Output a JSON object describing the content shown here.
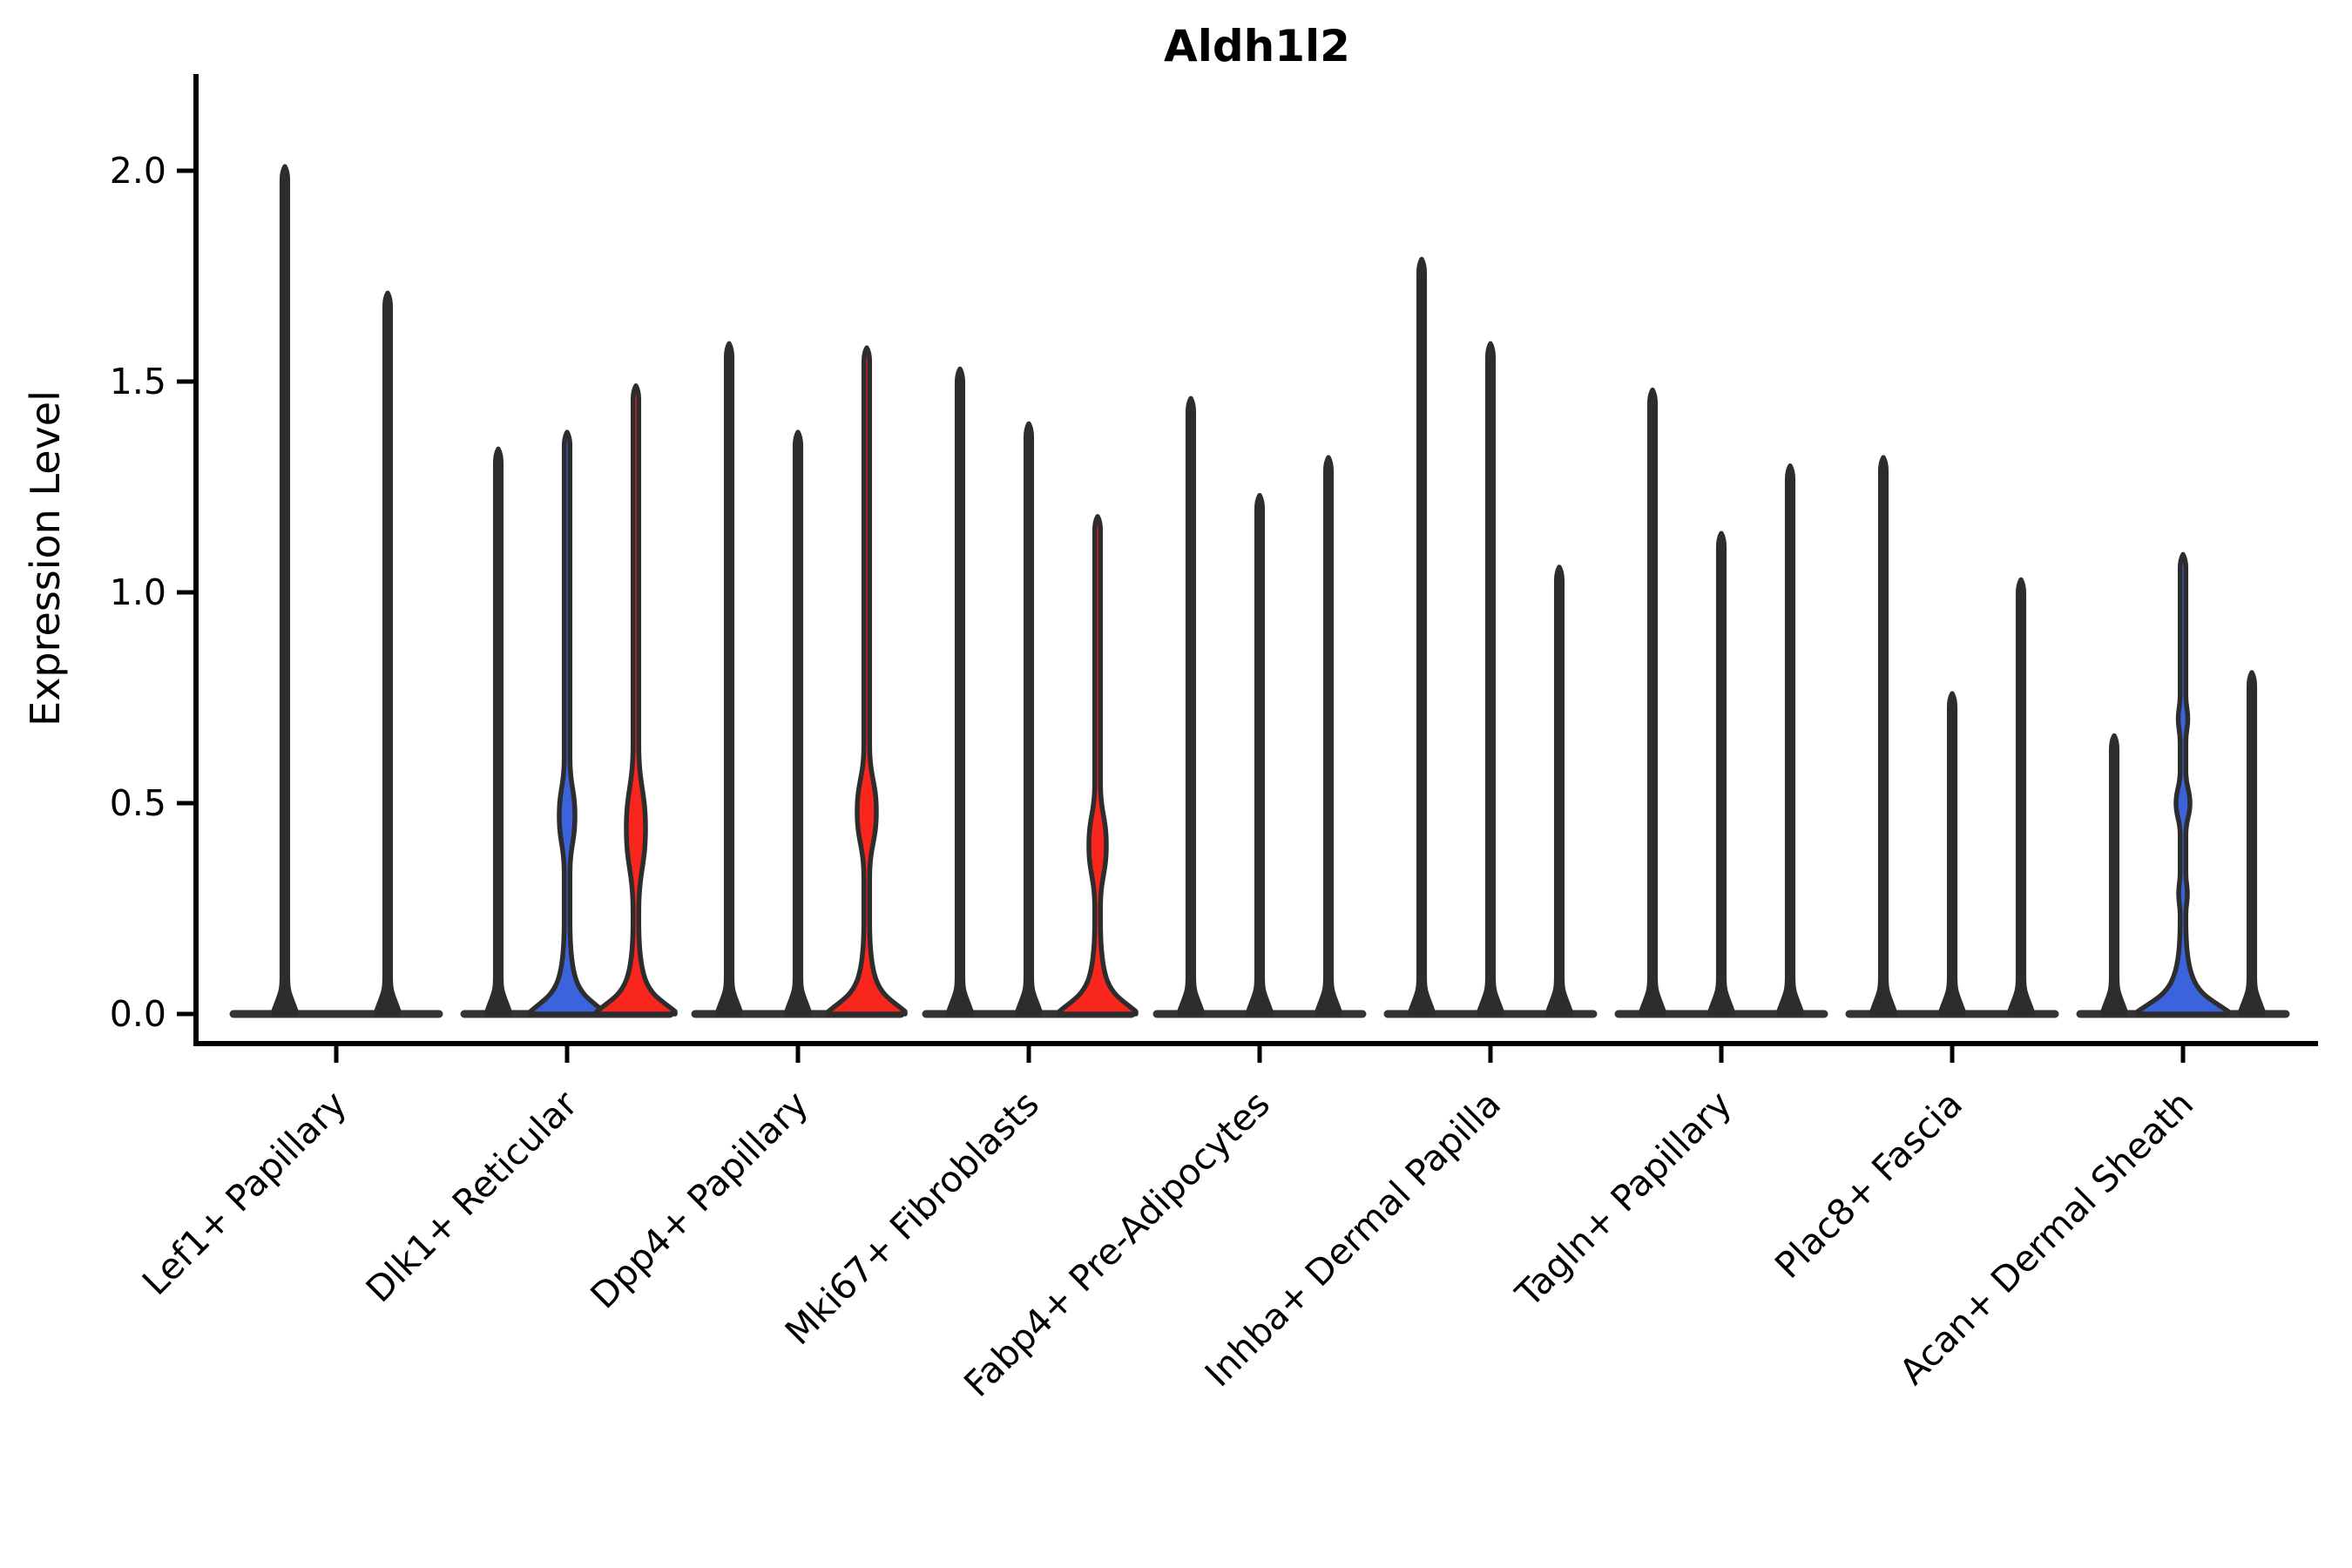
{
  "title": "Aldh1l2",
  "ylabel": "Expression Level",
  "chart_data": {
    "type": "violin",
    "title": "Aldh1l2",
    "xlabel": "",
    "ylabel": "Expression Level",
    "ylim": [
      -0.07,
      2.23
    ],
    "yticks": [
      0.0,
      0.5,
      1.0,
      1.5,
      2.0
    ],
    "ytick_labels": [
      "0.0",
      "0.5",
      "1.0",
      "1.5",
      "2.0"
    ],
    "grid": false,
    "legend": "none",
    "palette": {
      "blue": "#3B64DC",
      "red": "#F8261C",
      "outline": "#2d2d2d",
      "axis": "#000000"
    },
    "categories": [
      "Lef1+ Papillary",
      "Dlk1+ Reticular",
      "Dpp4+ Papillary",
      "Mki67+ Fibroblasts",
      "Fabp4+ Pre-Adipocytes",
      "Inhba+ Dermal Papilla",
      "Tagln+ Papillary",
      "Plac8+ Fascia",
      "Acan+ Dermal Sheath"
    ],
    "groups": [
      {
        "label": "Lef1+ Papillary",
        "violins": [
          {
            "peak": 2.01,
            "fill": null,
            "lenses": [],
            "base_hw": 13
          },
          {
            "peak": 1.71,
            "fill": null,
            "lenses": [],
            "base_hw": 13
          }
        ]
      },
      {
        "label": "Dlk1+ Reticular",
        "violins": [
          {
            "peak": 1.34,
            "fill": null,
            "lenses": [],
            "base_hw": 13
          },
          {
            "peak": 1.38,
            "fill": "blue",
            "lenses": [
              [
                0.47,
                0.14,
                9
              ]
            ],
            "base_hw": 42
          },
          {
            "peak": 1.49,
            "fill": "red",
            "lenses": [
              [
                0.44,
                0.2,
                11
              ]
            ],
            "base_hw": 45
          }
        ]
      },
      {
        "label": "Dpp4+ Papillary",
        "violins": [
          {
            "peak": 1.59,
            "fill": null,
            "lenses": [],
            "base_hw": 13
          },
          {
            "peak": 1.38,
            "fill": null,
            "lenses": [],
            "base_hw": 13
          },
          {
            "peak": 1.58,
            "fill": "red",
            "lenses": [
              [
                0.48,
                0.16,
                11
              ]
            ],
            "base_hw": 44
          }
        ]
      },
      {
        "label": "Mki67+ Fibroblasts",
        "violins": [
          {
            "peak": 1.53,
            "fill": null,
            "lenses": [],
            "base_hw": 13
          },
          {
            "peak": 1.4,
            "fill": null,
            "lenses": [],
            "base_hw": 13
          },
          {
            "peak": 1.18,
            "fill": "red",
            "lenses": [
              [
                0.4,
                0.15,
                10
              ]
            ],
            "base_hw": 44
          }
        ]
      },
      {
        "label": "Fabp4+ Pre-Adipocytes",
        "violins": [
          {
            "peak": 1.46,
            "fill": null,
            "lenses": [],
            "base_hw": 13
          },
          {
            "peak": 1.23,
            "fill": null,
            "lenses": [],
            "base_hw": 13
          },
          {
            "peak": 1.32,
            "fill": null,
            "lenses": [],
            "base_hw": 13
          }
        ]
      },
      {
        "label": "Inhba+ Dermal Papilla",
        "violins": [
          {
            "peak": 1.79,
            "fill": null,
            "lenses": [],
            "base_hw": 13
          },
          {
            "peak": 1.59,
            "fill": null,
            "lenses": [],
            "base_hw": 13
          },
          {
            "peak": 1.06,
            "fill": null,
            "lenses": [],
            "base_hw": 13
          }
        ]
      },
      {
        "label": "Tagln+ Papillary",
        "violins": [
          {
            "peak": 1.48,
            "fill": null,
            "lenses": [],
            "base_hw": 13
          },
          {
            "peak": 1.14,
            "fill": null,
            "lenses": [],
            "base_hw": 13
          },
          {
            "peak": 1.3,
            "fill": null,
            "lenses": [],
            "base_hw": 13
          }
        ]
      },
      {
        "label": "Plac8+ Fascia",
        "violins": [
          {
            "peak": 1.32,
            "fill": null,
            "lenses": [],
            "base_hw": 13
          },
          {
            "peak": 0.76,
            "fill": null,
            "lenses": [],
            "base_hw": 13
          },
          {
            "peak": 1.03,
            "fill": null,
            "lenses": [],
            "base_hw": 13
          }
        ]
      },
      {
        "label": "Acan+ Dermal Sheath",
        "violins": [
          {
            "peak": 0.66,
            "fill": null,
            "lenses": [],
            "base_hw": 13
          },
          {
            "peak": 1.09,
            "fill": "blue",
            "lenses": [
              [
                0.7,
                0.055,
                5.5
              ],
              [
                0.5,
                0.075,
                8
              ],
              [
                0.285,
                0.05,
                5
              ]
            ],
            "base_hw": 52
          },
          {
            "peak": 0.81,
            "fill": null,
            "lenses": [],
            "base_hw": 13
          }
        ]
      }
    ]
  }
}
